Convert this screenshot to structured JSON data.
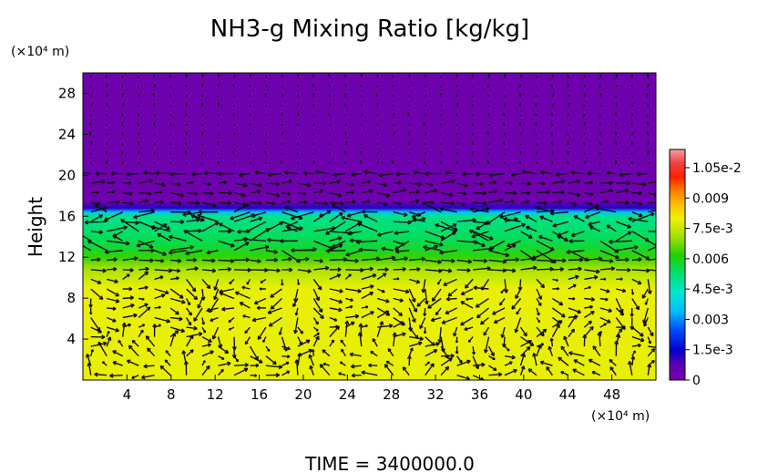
{
  "chart_data": {
    "type": "heatmap",
    "title": "NH3-g Mixing Ratio [kg/kg]",
    "ylabel": "Height",
    "x_unit": "(×10⁴ m)",
    "y_unit": "(×10⁴ m)",
    "x_ticks": [
      4,
      8,
      12,
      16,
      20,
      24,
      28,
      32,
      36,
      40,
      44,
      48
    ],
    "y_ticks": [
      4,
      8,
      12,
      16,
      20,
      24,
      28
    ],
    "xlim": [
      0,
      52
    ],
    "ylim": [
      0,
      30
    ],
    "colorbar": {
      "labels": [
        "0",
        "1.5e-3",
        "0.003",
        "4.5e-3",
        "0.006",
        "7.5e-3",
        "0.009",
        "1.05e-2"
      ],
      "values": [
        0,
        0.0015,
        0.003,
        0.0045,
        0.006,
        0.0075,
        0.009,
        0.0105
      ],
      "range": [
        0,
        0.0114
      ]
    },
    "field_profile": {
      "height": [
        0,
        9,
        10.8,
        12,
        13,
        14,
        15,
        16,
        16.4,
        16.8,
        17.4,
        30
      ],
      "mixing_ratio": [
        0.0079,
        0.0079,
        0.0072,
        0.0063,
        0.0057,
        0.0054,
        0.0052,
        0.005,
        0.0035,
        0.0012,
        0.0003,
        0.0003
      ]
    },
    "vector_field": "wind vectors overlaid",
    "footer": "TIME = 3400000.0"
  }
}
